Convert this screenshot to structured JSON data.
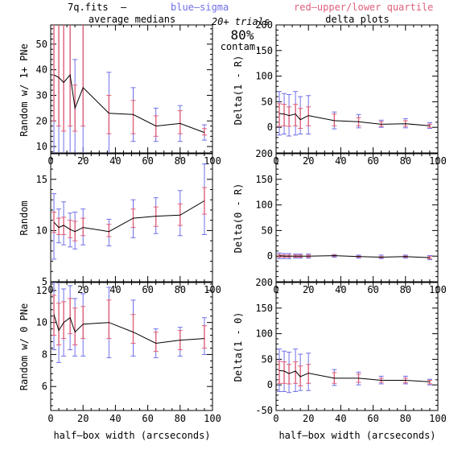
{
  "header": {
    "file_label": "7q.fits",
    "dash": "–",
    "blue_label": "blue–sigma",
    "red_label": "red–upper/lower quartile",
    "trials": "20+ trials",
    "percent": "80%",
    "contam": "contam."
  },
  "colors": {
    "line": "#000000",
    "sigma": "#6f6fe8",
    "quartile": "#e0607a"
  },
  "chart_data": [
    {
      "type": "line",
      "id": "p1",
      "title": "average medians",
      "xlabel": "",
      "ylabel": "Random w/ 1+ PNe",
      "xlim": [
        0,
        100
      ],
      "ylim": [
        7.5,
        57.5
      ],
      "xticks": [
        0,
        20,
        40,
        60,
        80,
        100
      ],
      "yticks": [
        10,
        20,
        30,
        40,
        50
      ],
      "x": [
        2,
        5,
        8,
        12,
        15,
        20,
        36,
        51,
        65,
        80,
        95
      ],
      "y": [
        38,
        37,
        35,
        38,
        25,
        33,
        23,
        22.5,
        18,
        19,
        15.5
      ],
      "sigma_lo": [
        -10,
        -10,
        -10,
        -10,
        -10,
        -10,
        7,
        12,
        12,
        12,
        12.5
      ],
      "sigma_hi": [
        120,
        120,
        120,
        120,
        44,
        120,
        39,
        33,
        25,
        26,
        18.5
      ],
      "q_lo": [
        20,
        18,
        16,
        18,
        16,
        18,
        15,
        15,
        14,
        15,
        14.5
      ],
      "q_hi": [
        120,
        120,
        60,
        60,
        34,
        60,
        30,
        28,
        22,
        24,
        17
      ]
    },
    {
      "type": "line",
      "id": "p2",
      "title": "delta plots",
      "xlabel": "",
      "ylabel": "Delta(1 - R)",
      "xlim": [
        0,
        100
      ],
      "ylim": [
        -50,
        200
      ],
      "xticks": [
        0,
        20,
        40,
        60,
        80,
        100
      ],
      "yticks": [
        0,
        50,
        100,
        150,
        200
      ],
      "x": [
        2,
        5,
        8,
        12,
        15,
        20,
        36,
        51,
        65,
        80,
        95
      ],
      "y": [
        27,
        26,
        23,
        26,
        15,
        23,
        13,
        11,
        6,
        7,
        3
      ],
      "sigma_lo": [
        -15,
        -13,
        -17,
        -15,
        -13,
        -13,
        -3,
        -1,
        0,
        -1,
        -2
      ],
      "sigma_hi": [
        70,
        66,
        64,
        70,
        60,
        62,
        30,
        25,
        14,
        17,
        9
      ],
      "q_lo": [
        2,
        3,
        2,
        3,
        -2,
        3,
        3,
        3,
        2,
        2,
        0
      ],
      "q_hi": [
        46,
        45,
        40,
        45,
        37,
        40,
        26,
        19,
        11,
        13,
        6
      ]
    },
    {
      "type": "line",
      "id": "p3",
      "title": "",
      "xlabel": "",
      "ylabel": "Random",
      "xlim": [
        0,
        100
      ],
      "ylim": [
        5,
        17.5
      ],
      "xticks": [
        0,
        20,
        40,
        60,
        80,
        100
      ],
      "yticks": [
        5,
        10,
        15
      ],
      "x": [
        2,
        5,
        8,
        12,
        15,
        20,
        36,
        51,
        65,
        80,
        95
      ],
      "y": [
        10.8,
        10.3,
        10.5,
        10.1,
        9.9,
        10.3,
        9.9,
        11.2,
        11.4,
        11.5,
        12.9
      ],
      "sigma_lo": [
        7.2,
        8.8,
        8.6,
        8.4,
        8.2,
        8.6,
        8.5,
        9.3,
        9.7,
        9.5,
        9.6
      ],
      "sigma_hi": [
        13.6,
        12.1,
        12.8,
        11.7,
        11.8,
        12.1,
        11.1,
        13.0,
        13.2,
        13.9,
        16.5
      ],
      "q_lo": [
        9.8,
        9.6,
        9.6,
        9.3,
        9.0,
        9.5,
        9.4,
        10.3,
        10.4,
        10.5,
        11.6
      ],
      "q_hi": [
        11.8,
        11.2,
        11.3,
        11.0,
        10.9,
        11.2,
        10.6,
        12.1,
        12.3,
        12.6,
        14.2
      ]
    },
    {
      "type": "line",
      "id": "p4",
      "title": "",
      "xlabel": "",
      "ylabel": "Delta(0 - R)",
      "xlim": [
        0,
        100
      ],
      "ylim": [
        -50,
        200
      ],
      "xticks": [
        0,
        20,
        40,
        60,
        80,
        100
      ],
      "yticks": [
        0,
        50,
        100,
        150,
        200
      ],
      "x": [
        2,
        5,
        8,
        12,
        15,
        20,
        36,
        51,
        65,
        80,
        95
      ],
      "y": [
        1,
        0,
        0,
        0,
        0,
        0,
        1,
        -1,
        -2,
        -1,
        -3
      ],
      "sigma_lo": [
        -5,
        -5,
        -5,
        -4,
        -4,
        -4,
        -2,
        -4,
        -5,
        -4,
        -7
      ],
      "sigma_hi": [
        6,
        5,
        5,
        4,
        4,
        4,
        3,
        2,
        2,
        2,
        1
      ],
      "q_lo": [
        -2,
        -2,
        -2,
        -2,
        -2,
        -2,
        0,
        -2,
        -3,
        -2,
        -5
      ],
      "q_hi": [
        3,
        2,
        2,
        2,
        2,
        2,
        2,
        0,
        -1,
        0,
        -1
      ]
    },
    {
      "type": "line",
      "id": "p5",
      "title": "",
      "xlabel": "half–box width (arcseconds)",
      "ylabel": "Random w/ 0 PNe",
      "xlim": [
        0,
        100
      ],
      "ylim": [
        4.5,
        12.5
      ],
      "xticks": [
        0,
        20,
        40,
        60,
        80,
        100
      ],
      "yticks": [
        6,
        8,
        10,
        12
      ],
      "x": [
        2,
        5,
        8,
        12,
        15,
        20,
        36,
        51,
        65,
        80,
        95
      ],
      "y": [
        10.5,
        9.5,
        10.0,
        10.3,
        9.4,
        9.9,
        10.0,
        9.4,
        8.7,
        8.9,
        9.0
      ],
      "sigma_lo": [
        8.3,
        7.5,
        7.9,
        8.3,
        7.9,
        7.9,
        7.8,
        7.9,
        7.8,
        7.9,
        8.0
      ],
      "sigma_hi": [
        12.5,
        12.7,
        12.1,
        12.3,
        11.5,
        11.8,
        12.2,
        11.4,
        9.6,
        9.7,
        10.3
      ],
      "q_lo": [
        9.2,
        8.6,
        9.0,
        9.3,
        8.6,
        9.0,
        9.0,
        8.7,
        8.2,
        8.3,
        8.4
      ],
      "q_hi": [
        11.7,
        11.2,
        11.3,
        11.5,
        10.9,
        11.0,
        11.4,
        10.5,
        9.4,
        9.5,
        9.8
      ]
    },
    {
      "type": "line",
      "id": "p6",
      "title": "",
      "xlabel": "half–box width (arcseconds)",
      "ylabel": "Delta(1 - 0)",
      "xlim": [
        0,
        100
      ],
      "ylim": [
        -50,
        200
      ],
      "xticks": [
        0,
        20,
        40,
        60,
        80,
        100
      ],
      "yticks": [
        -50,
        0,
        50,
        100,
        150,
        200
      ],
      "x": [
        2,
        5,
        8,
        12,
        15,
        20,
        36,
        51,
        65,
        80,
        95
      ],
      "y": [
        28,
        27,
        22,
        27,
        16,
        23,
        13,
        13,
        9,
        9,
        6
      ],
      "sigma_lo": [
        -13,
        -13,
        -15,
        -13,
        -11,
        -11,
        -1,
        0,
        2,
        2,
        0
      ],
      "sigma_hi": [
        70,
        66,
        64,
        70,
        60,
        62,
        30,
        25,
        17,
        17,
        11
      ],
      "q_lo": [
        3,
        3,
        2,
        3,
        -2,
        3,
        3,
        5,
        5,
        4,
        2
      ],
      "q_hi": [
        46,
        45,
        40,
        45,
        37,
        40,
        24,
        21,
        13,
        13,
        9
      ]
    }
  ]
}
